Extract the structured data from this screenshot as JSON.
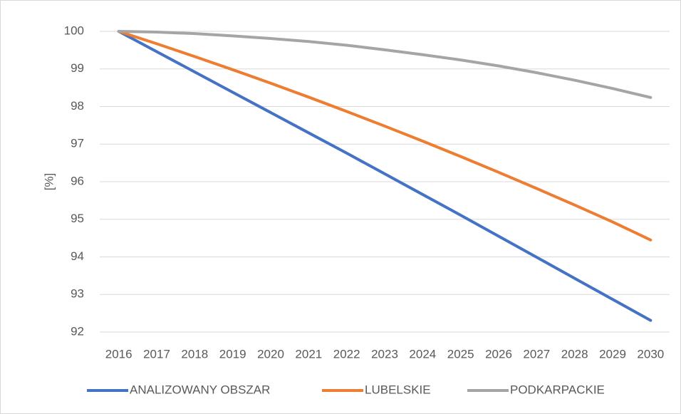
{
  "chart_data": {
    "type": "line",
    "y_label": "[%]",
    "categories": [
      "2016",
      "2017",
      "2018",
      "2019",
      "2020",
      "2021",
      "2022",
      "2023",
      "2024",
      "2025",
      "2026",
      "2027",
      "2028",
      "2029",
      "2030"
    ],
    "series": [
      {
        "name": "ANALIZOWANY OBSZAR",
        "color": "#4472c4",
        "values": [
          100,
          99.46,
          98.92,
          98.38,
          97.84,
          97.3,
          96.76,
          96.21,
          95.66,
          95.11,
          94.55,
          93.99,
          93.43,
          92.87,
          92.31
        ]
      },
      {
        "name": "LUBELSKIE",
        "color": "#ed7d31",
        "values": [
          100,
          99.67,
          99.33,
          98.98,
          98.62,
          98.25,
          97.87,
          97.48,
          97.08,
          96.67,
          96.25,
          95.82,
          95.38,
          94.93,
          94.45
        ]
      },
      {
        "name": "PODKARPACKIE",
        "color": "#a5a5a5",
        "values": [
          100,
          99.98,
          99.94,
          99.88,
          99.81,
          99.73,
          99.63,
          99.51,
          99.38,
          99.24,
          99.08,
          98.9,
          98.7,
          98.48,
          98.24
        ]
      }
    ],
    "ylim": [
      92,
      100
    ],
    "yticks": [
      92,
      93,
      94,
      95,
      96,
      97,
      98,
      99,
      100
    ],
    "grid": true,
    "legend": "bottom"
  }
}
